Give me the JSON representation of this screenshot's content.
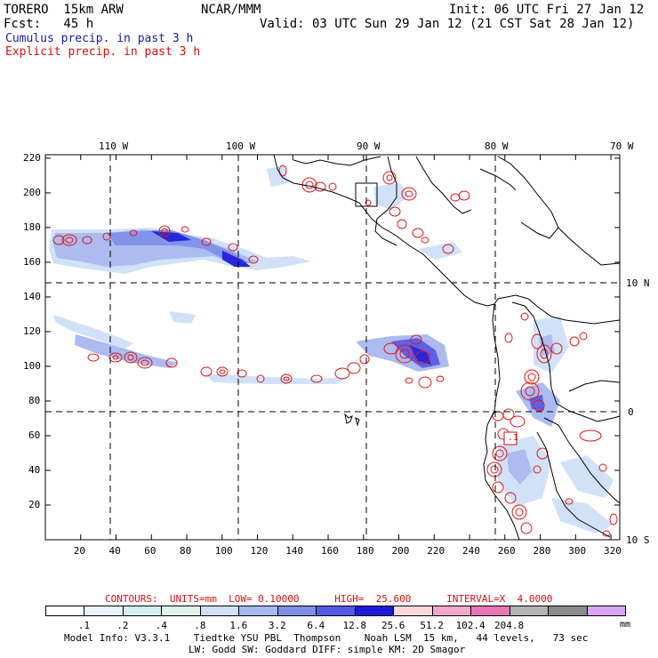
{
  "header": {
    "model": "TORERO  15km ARW",
    "center": "NCAR/MMM",
    "init": "Init: 06 UTC Fri 27 Jan 12",
    "fcst": "Fcst:   45 h",
    "valid": "Valid: 03 UTC Sun 29 Jan 12 (21 CST Sat 28 Jan 12)",
    "legend_cumulus": "Cumulus precip. in past 3 h",
    "legend_explicit": "Explicit precip. in past 3 h"
  },
  "axes": {
    "lon_labels": [
      "110 W",
      "100 W",
      "90 W",
      "80 W",
      "70 W"
    ],
    "lat_labels": [
      "10 N",
      "0",
      "10 S"
    ],
    "x_ticks": [
      "20",
      "40",
      "60",
      "80",
      "100",
      "120",
      "140",
      "160",
      "180",
      "200",
      "220",
      "240",
      "260",
      "280",
      "300",
      "320"
    ],
    "y_ticks": [
      "220",
      "200",
      "180",
      "160",
      "140",
      "120",
      "100",
      "80",
      "60",
      "40",
      "20"
    ]
  },
  "annotation": {
    "label": ".1"
  },
  "contours_line": {
    "label": "CONTOURS:  UNITS=mm  LOW= 0.10000      HIGH=  25.600      INTERVAL=X  4.0000"
  },
  "colorbar": {
    "colors": [
      "#ffffff",
      "#eaf2fc",
      "#d6f0f0",
      "#e4f4ea",
      "#cfe0f8",
      "#a8b8f0",
      "#7c8ee8",
      "#5858e6",
      "#1c1cd8",
      "#fbdada",
      "#f2a8c8",
      "#e676b6",
      "#b4b4b4",
      "#8c8c8c",
      "#d8a6f2"
    ],
    "labels": [
      ".1",
      ".2",
      ".4",
      ".8",
      "1.6",
      "3.2",
      "6.4",
      "12.8",
      "25.6",
      "51.2",
      "102.4",
      "204.8"
    ],
    "units": "mm"
  },
  "model_info": {
    "line1": "Model Info: V3.3.1    Tiedtke YSU PBL  Thompson    Noah LSM  15 km,   44 levels,   73 sec",
    "line2": "LW: Godd SW: Goddard DIFF: simple KM: 2D Smagor"
  }
}
